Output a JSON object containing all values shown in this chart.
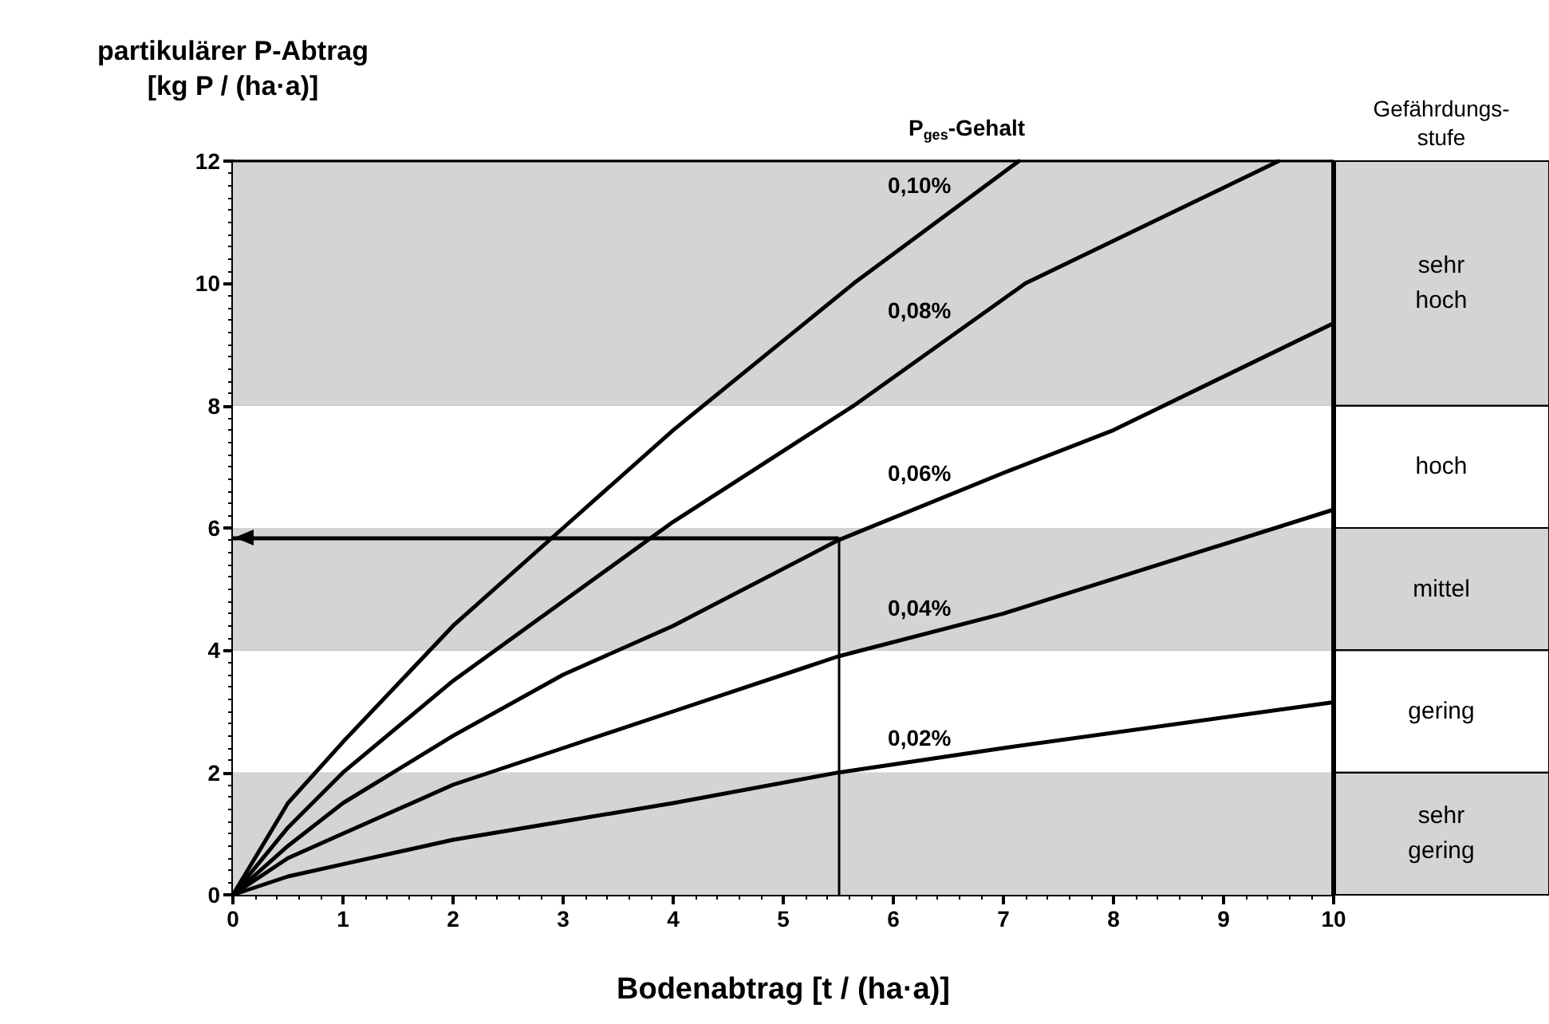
{
  "chart_data": {
    "type": "line",
    "xlabel": "Bodenabtrag [t / (ha·a)]",
    "ylabel": "partikulärer P-Abtrag\n[kg P / (ha·a)]",
    "xlim": [
      0,
      10
    ],
    "xticks": [
      0,
      1,
      2,
      3,
      4,
      5,
      6,
      7,
      8,
      9,
      10
    ],
    "ylim": [
      0,
      12
    ],
    "yticks": [
      0,
      2,
      4,
      6,
      8,
      10,
      12
    ],
    "grid": "y",
    "legend": false,
    "marker": "none",
    "line_style": "solid",
    "series": [
      {
        "name": "0,02%",
        "color": "#000000",
        "x": [
          0,
          0.5,
          1,
          2,
          3,
          4,
          5.5,
          7,
          10
        ],
        "values": [
          0,
          0.3,
          0.5,
          0.9,
          1.2,
          1.5,
          2.0,
          2.4,
          3.15
        ]
      },
      {
        "name": "0,04%",
        "color": "#000000",
        "x": [
          0,
          0.5,
          1,
          2,
          3,
          4,
          5.5,
          7,
          10
        ],
        "values": [
          0,
          0.6,
          1.0,
          1.8,
          2.4,
          3.0,
          3.9,
          4.6,
          6.3
        ]
      },
      {
        "name": "0,06%",
        "color": "#000000",
        "x": [
          0,
          0.5,
          1,
          2,
          3,
          4,
          5.5,
          7,
          8,
          10
        ],
        "values": [
          0,
          0.8,
          1.5,
          2.6,
          3.6,
          4.4,
          5.8,
          6.9,
          7.6,
          9.35
        ]
      },
      {
        "name": "0,08%",
        "color": "#000000",
        "x": [
          0,
          0.5,
          1,
          2,
          3,
          4,
          5.64,
          7.2,
          9.5
        ],
        "values": [
          0,
          1.1,
          2.0,
          3.5,
          4.8,
          6.1,
          8,
          10,
          12
        ]
      },
      {
        "name": "0,10%",
        "color": "#000000",
        "x": [
          0,
          0.5,
          1,
          2,
          3,
          4,
          5.64,
          7.14
        ],
        "values": [
          0,
          1.5,
          2.5,
          4.4,
          6.0,
          7.6,
          10,
          12
        ]
      }
    ],
    "bands": [
      {
        "axis": "y",
        "from": 0,
        "to": 2,
        "label": "sehr\ngering",
        "color": "#d4d4d4"
      },
      {
        "axis": "y",
        "from": 2,
        "to": 4,
        "label": "gering",
        "color": "#ffffff"
      },
      {
        "axis": "y",
        "from": 4,
        "to": 6,
        "label": "mittel",
        "color": "#d4d4d4"
      },
      {
        "axis": "y",
        "from": 6,
        "to": 8,
        "label": "hoch",
        "color": "#ffffff"
      },
      {
        "axis": "y",
        "from": 8,
        "to": 12,
        "label": "sehr\nhoch",
        "color": "#d4d4d4"
      }
    ],
    "ref_lines": [
      {
        "axis": "x",
        "value": 5.5,
        "color": "#000000"
      },
      {
        "axis": "y",
        "value": 5.85,
        "color": "#000000"
      }
    ],
    "annotations": [
      "P$_{ges}$-Gehalt",
      "Gefährdungs-\nstufe"
    ]
  }
}
